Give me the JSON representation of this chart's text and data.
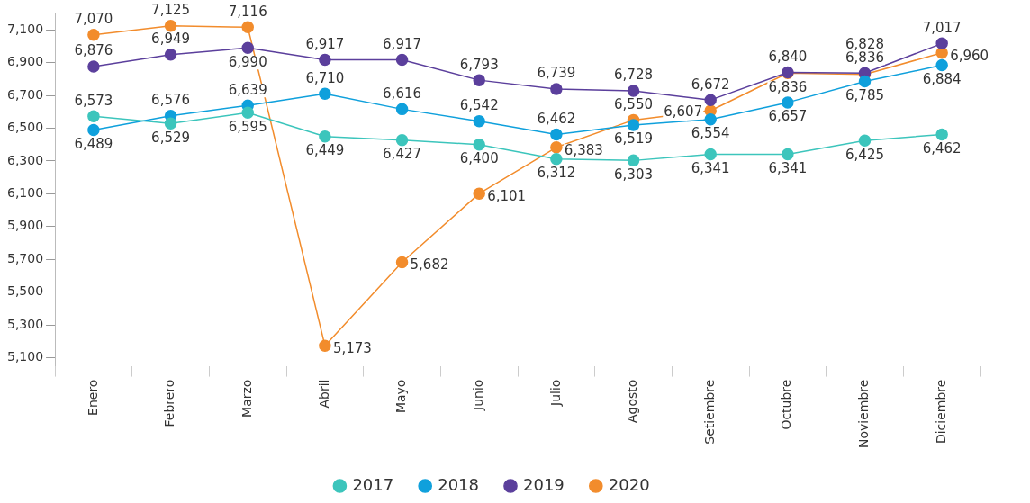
{
  "chart_data": {
    "type": "line",
    "categories": [
      "Enero",
      "Febrero",
      "Marzo",
      "Abril",
      "Mayo",
      "Junio",
      "Julio",
      "Agosto",
      "Setiembre",
      "Octubre",
      "Noviembre",
      "Diciembre"
    ],
    "series": [
      {
        "name": "2017",
        "color": "#3cc5bc",
        "values": [
          6573,
          6529,
          6595,
          6449,
          6427,
          6400,
          6312,
          6303,
          6341,
          6341,
          6425,
          6462
        ],
        "value_labels": [
          "6,573",
          "6,529",
          "6,595",
          "6,449",
          "6,427",
          "6,400",
          "6,312",
          "6,303",
          "6,341",
          "6,341",
          "6,425",
          "6,462"
        ]
      },
      {
        "name": "2018",
        "color": "#0fa0dc",
        "values": [
          6489,
          6576,
          6639,
          6710,
          6616,
          6542,
          6462,
          6519,
          6554,
          6657,
          6785,
          6884
        ],
        "value_labels": [
          "6,489",
          "6,576",
          "6,639",
          "6,710",
          "6,616",
          "6,542",
          "6,462",
          "6,519",
          "6,554",
          "6,657",
          "6,785",
          "6,884"
        ]
      },
      {
        "name": "2019",
        "color": "#5b3f9c",
        "values": [
          6876,
          6949,
          6990,
          6917,
          6917,
          6793,
          6739,
          6728,
          6672,
          6840,
          6836,
          7017
        ],
        "value_labels": [
          "6,876",
          "6,949",
          "6,990",
          "6,917",
          "6,917",
          "6,793",
          "6,739",
          "6,728",
          "6,672",
          "6,840",
          "6,836",
          "7,017"
        ]
      },
      {
        "name": "2020",
        "color": "#f28c2c",
        "values": [
          7070,
          7125,
          7116,
          5173,
          5682,
          6101,
          6383,
          6550,
          6607,
          6836,
          6828,
          6960
        ],
        "value_labels": [
          "7,070",
          "7,125",
          "7,116",
          "5,173",
          "5,682",
          "6,101",
          "6,383",
          "6,550",
          "6,607",
          "6,836",
          "6,828",
          "6,960"
        ]
      }
    ],
    "ylim": [
      5050,
      7200
    ],
    "yticks": [
      {
        "value": 5100,
        "label": "5,100"
      },
      {
        "value": 5300,
        "label": "5,300"
      },
      {
        "value": 5500,
        "label": "5,500"
      },
      {
        "value": 5700,
        "label": "5,700"
      },
      {
        "value": 5900,
        "label": "5,900"
      },
      {
        "value": 6100,
        "label": "6,100"
      },
      {
        "value": 6300,
        "label": "6,300"
      },
      {
        "value": 6500,
        "label": "6,500"
      },
      {
        "value": 6700,
        "label": "6,700"
      },
      {
        "value": 6900,
        "label": "6,900"
      },
      {
        "value": 7100,
        "label": "7,100"
      }
    ],
    "grid": false,
    "legend": "bottom",
    "marker": "circle",
    "line_style": "solid"
  }
}
